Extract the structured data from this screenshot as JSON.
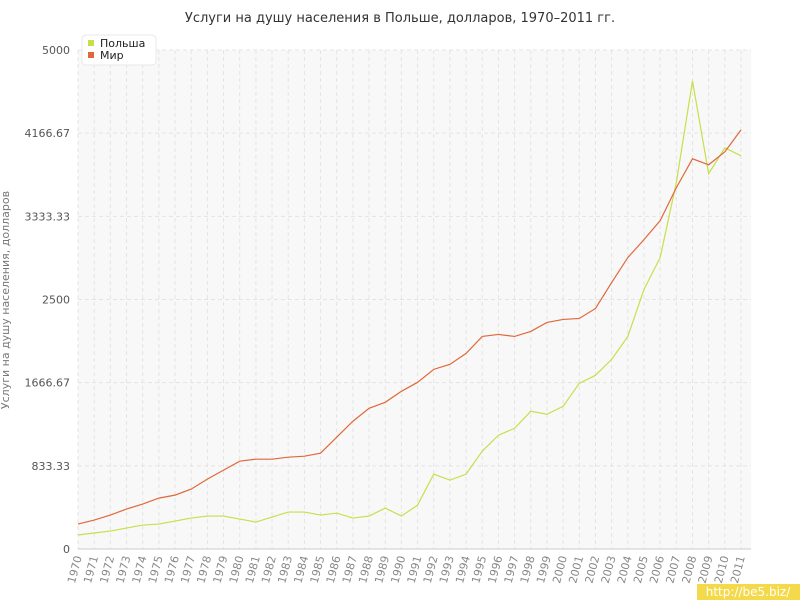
{
  "chart_data": {
    "type": "line",
    "title": "Услуги на душу населения в Польше, долларов, 1970–2011 гг.",
    "y_label": "Услуги на душу населения, долларов",
    "categories": [
      "1970",
      "1971",
      "1972",
      "1973",
      "1974",
      "1975",
      "1976",
      "1977",
      "1978",
      "1979",
      "1980",
      "1981",
      "1982",
      "1983",
      "1984",
      "1985",
      "1986",
      "1987",
      "1988",
      "1989",
      "1990",
      "1991",
      "1992",
      "1993",
      "1994",
      "1995",
      "1996",
      "1997",
      "1998",
      "1999",
      "2000",
      "2001",
      "2002",
      "2003",
      "2004",
      "2005",
      "2006",
      "2007",
      "2008",
      "2009",
      "2010",
      "2011"
    ],
    "series": [
      {
        "name": "Польша",
        "color": "#c5e04a",
        "values": [
          140,
          160,
          180,
          210,
          240,
          250,
          280,
          310,
          330,
          330,
          300,
          270,
          320,
          370,
          370,
          340,
          360,
          310,
          330,
          410,
          330,
          440,
          750,
          690,
          750,
          980,
          1140,
          1210,
          1380,
          1350,
          1430,
          1660,
          1740,
          1900,
          2130,
          2600,
          2920,
          3670,
          4690,
          3760,
          4020,
          3940
        ]
      },
      {
        "name": "Мир",
        "color": "#e0683a",
        "values": [
          250,
          290,
          340,
          400,
          450,
          510,
          540,
          600,
          700,
          790,
          880,
          900,
          900,
          920,
          930,
          960,
          1120,
          1280,
          1410,
          1470,
          1580,
          1670,
          1800,
          1850,
          1960,
          2130,
          2150,
          2130,
          2180,
          2270,
          2300,
          2310,
          2410,
          2670,
          2920,
          3100,
          3290,
          3620,
          3910,
          3850,
          3980,
          4200
        ]
      }
    ],
    "ylim": [
      0,
      5000
    ],
    "yticks": [
      0,
      833.33,
      1666.67,
      2500,
      3333.33,
      4166.67,
      5000
    ],
    "grid": true,
    "legend": "top-left",
    "watermark": "http://be5.biz/"
  }
}
